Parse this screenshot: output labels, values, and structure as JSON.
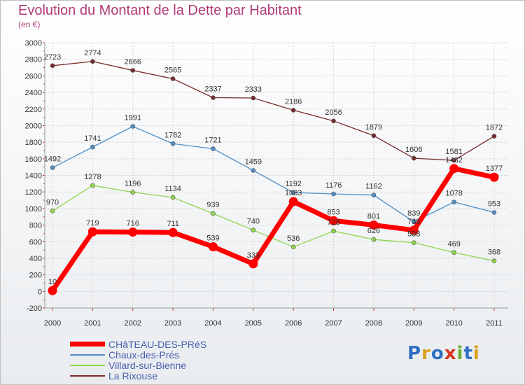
{
  "chart_data": {
    "type": "line",
    "title": "Evolution du Montant de la Dette par Habitant",
    "unit_label": "(en €)",
    "x": [
      "2000",
      "2001",
      "2002",
      "2003",
      "2004",
      "2005",
      "2006",
      "2007",
      "2008",
      "2009",
      "2010",
      "2011"
    ],
    "ylim": [
      -200,
      3000
    ],
    "yticks": [
      "-200",
      "0",
      "200",
      "400",
      "600",
      "800",
      "1000",
      "1200",
      "1400",
      "1600",
      "1800",
      "2000",
      "2200",
      "2400",
      "2600",
      "2800",
      "3000"
    ],
    "grid": true,
    "legend_position": "bottom-left",
    "series": [
      {
        "name": "CHâTEAU-DES-PRéS",
        "color": "#ff0000",
        "values": [
          10,
          719,
          716,
          711,
          539,
          333,
          1083,
          853,
          801,
          738,
          1482,
          1377
        ],
        "labels": [
          "10",
          "719",
          "716",
          "711",
          "539",
          "333",
          "1083",
          "853",
          "801",
          "738",
          "1482",
          "1377"
        ]
      },
      {
        "name": "Chaux-des-Prés",
        "color": "#4f8fc8",
        "values": [
          1492,
          1741,
          1991,
          1782,
          1721,
          1459,
          1192,
          1176,
          1162,
          839,
          1078,
          953
        ],
        "labels": [
          "1492",
          "1741",
          "1991",
          "1782",
          "1721",
          "1459",
          "1192",
          "1176",
          "1162",
          "839",
          "1078",
          "953"
        ]
      },
      {
        "name": "Villard-sur-Bienne",
        "color": "#8fd64a",
        "values": [
          970,
          1278,
          1196,
          1134,
          939,
          740,
          536,
          728,
          626,
          588,
          469,
          368
        ],
        "labels": [
          "970",
          "1278",
          "1196",
          "1134",
          "939",
          "740",
          "536",
          "728",
          "626",
          "588",
          "469",
          "368"
        ]
      },
      {
        "name": "La Rixouse",
        "color": "#7a2a2a",
        "values": [
          2723,
          2774,
          2666,
          2565,
          2337,
          2333,
          2186,
          2056,
          1879,
          1606,
          1581,
          1872
        ],
        "labels": [
          "2723",
          "2774",
          "2666",
          "2565",
          "2337",
          "2333",
          "2186",
          "2056",
          "1879",
          "1606",
          "1581",
          "1872"
        ]
      }
    ]
  },
  "logo": {
    "letters": [
      "P",
      "r",
      "o",
      "x",
      "i",
      "t",
      "i"
    ],
    "colors": [
      "#2f6fc2",
      "#d9a017",
      "#2f6fc2",
      "#d9341e",
      "#6ab02e",
      "#2f6fc2",
      "#d9a017"
    ]
  }
}
